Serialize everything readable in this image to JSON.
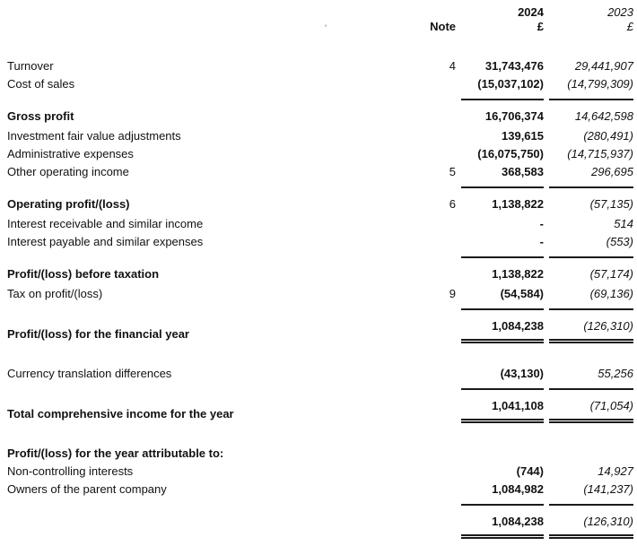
{
  "header": {
    "note_label": "Note",
    "col_2024": "2024",
    "col_2023": "2023",
    "currency_2024": "£",
    "currency_2023": "£"
  },
  "artifact_mark": "'",
  "table": {
    "rows": [
      {
        "label": "Turnover",
        "note": "4",
        "v2024": "31,743,476",
        "v2023": "29,441,907",
        "type": "item"
      },
      {
        "label": "Cost of sales",
        "note": "",
        "v2024": "(15,037,102)",
        "v2023": "(14,799,309)",
        "type": "item"
      },
      {
        "label": "Gross profit",
        "note": "",
        "v2024": "16,706,374",
        "v2023": "14,642,598",
        "type": "subtotal"
      },
      {
        "label": "Investment fair value adjustments",
        "note": "",
        "v2024": "139,615",
        "v2023": "(280,491)",
        "type": "item"
      },
      {
        "label": "Administrative expenses",
        "note": "",
        "v2024": "(16,075,750)",
        "v2023": "(14,715,937)",
        "type": "item"
      },
      {
        "label": "Other operating income",
        "note": "5",
        "v2024": "368,583",
        "v2023": "296,695",
        "type": "item"
      },
      {
        "label": "Operating profit/(loss)",
        "note": "6",
        "v2024": "1,138,822",
        "v2023": "(57,135)",
        "type": "subtotal"
      },
      {
        "label": "Interest receivable and similar income",
        "note": "",
        "v2024": "-",
        "v2023": "514",
        "type": "item"
      },
      {
        "label": "Interest payable and similar expenses",
        "note": "",
        "v2024": "-",
        "v2023": "(553)",
        "type": "item"
      },
      {
        "label": "Profit/(loss) before taxation",
        "note": "",
        "v2024": "1,138,822",
        "v2023": "(57,174)",
        "type": "subtotal"
      },
      {
        "label": "Tax on profit/(loss)",
        "note": "9",
        "v2024": "(54,584)",
        "v2023": "(69,136)",
        "type": "item"
      },
      {
        "label": "Profit/(loss) for the financial year",
        "note": "",
        "v2024": "1,084,238",
        "v2023": "(126,310)",
        "type": "grandtotal"
      },
      {
        "label": "Currency translation differences",
        "note": "",
        "v2024": "(43,130)",
        "v2023": "55,256",
        "type": "item"
      },
      {
        "label": "Total comprehensive income for the year",
        "note": "",
        "v2024": "1,041,108",
        "v2023": "(71,054)",
        "type": "grandtotal"
      },
      {
        "label": "Profit/(loss) for the year attributable to:",
        "note": "",
        "v2024": "",
        "v2023": "",
        "type": "heading"
      },
      {
        "label": "Non-controlling interests",
        "note": "",
        "v2024": "(744)",
        "v2023": "14,927",
        "type": "item"
      },
      {
        "label": "Owners of the parent company",
        "note": "",
        "v2024": "1,084,982",
        "v2023": "(141,237)",
        "type": "item"
      },
      {
        "label": "",
        "note": "",
        "v2024": "1,084,238",
        "v2023": "(126,310)",
        "type": "grandtotal"
      }
    ]
  }
}
